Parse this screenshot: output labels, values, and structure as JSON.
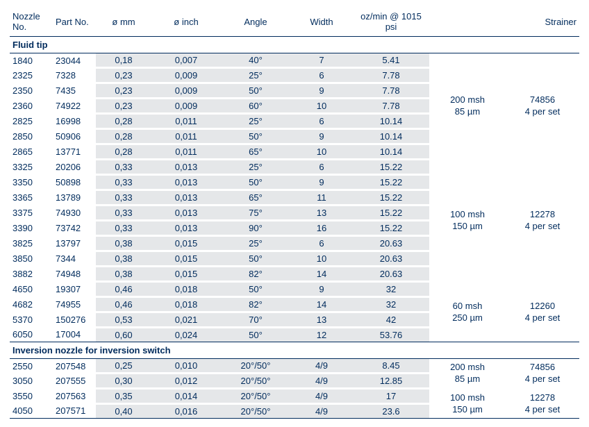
{
  "headers": {
    "nozzle": "Nozzle No.",
    "part": "Part No.",
    "mm": "ø mm",
    "inch": "ø inch",
    "angle": "Angle",
    "width": "Width",
    "oz": "oz/min @ 1015 psi",
    "strainer": "Strainer"
  },
  "section1": "Fluid tip",
  "section2": "Inversion nozzle for inversion switch",
  "fluid": [
    {
      "n": "1840",
      "p": "23044",
      "mm": "0,18",
      "in": "0,007",
      "a": "40°",
      "w": "7",
      "oz": "5.41"
    },
    {
      "n": "2325",
      "p": "7328",
      "mm": "0,23",
      "in": "0,009",
      "a": "25°",
      "w": "6",
      "oz": "7.78"
    },
    {
      "n": "2350",
      "p": "7435",
      "mm": "0,23",
      "in": "0,009",
      "a": "50°",
      "w": "9",
      "oz": "7.78"
    },
    {
      "n": "2360",
      "p": "74922",
      "mm": "0,23",
      "in": "0,009",
      "a": "60°",
      "w": "10",
      "oz": "7.78"
    },
    {
      "n": "2825",
      "p": "16998",
      "mm": "0,28",
      "in": "0,011",
      "a": "25°",
      "w": "6",
      "oz": "10.14"
    },
    {
      "n": "2850",
      "p": "50906",
      "mm": "0,28",
      "in": "0,011",
      "a": "50°",
      "w": "9",
      "oz": "10.14"
    },
    {
      "n": "2865",
      "p": "13771",
      "mm": "0,28",
      "in": "0,011",
      "a": "65°",
      "w": "10",
      "oz": "10.14"
    },
    {
      "n": "3325",
      "p": "20206",
      "mm": "0,33",
      "in": "0,013",
      "a": "25°",
      "w": "6",
      "oz": "15.22"
    },
    {
      "n": "3350",
      "p": "50898",
      "mm": "0,33",
      "in": "0,013",
      "a": "50°",
      "w": "9",
      "oz": "15.22"
    },
    {
      "n": "3365",
      "p": "13789",
      "mm": "0,33",
      "in": "0,013",
      "a": "65°",
      "w": "11",
      "oz": "15.22"
    },
    {
      "n": "3375",
      "p": "74930",
      "mm": "0,33",
      "in": "0,013",
      "a": "75°",
      "w": "13",
      "oz": "15.22"
    },
    {
      "n": "3390",
      "p": "73742",
      "mm": "0,33",
      "in": "0,013",
      "a": "90°",
      "w": "16",
      "oz": "15.22"
    },
    {
      "n": "3825",
      "p": "13797",
      "mm": "0,38",
      "in": "0,015",
      "a": "25°",
      "w": "6",
      "oz": "20.63"
    },
    {
      "n": "3850",
      "p": "7344",
      "mm": "0,38",
      "in": "0,015",
      "a": "50°",
      "w": "10",
      "oz": "20.63"
    },
    {
      "n": "3882",
      "p": "74948",
      "mm": "0,38",
      "in": "0,015",
      "a": "82°",
      "w": "14",
      "oz": "20.63"
    },
    {
      "n": "4650",
      "p": "19307",
      "mm": "0,46",
      "in": "0,018",
      "a": "50°",
      "w": "9",
      "oz": "32"
    },
    {
      "n": "4682",
      "p": "74955",
      "mm": "0,46",
      "in": "0,018",
      "a": "82°",
      "w": "14",
      "oz": "32"
    },
    {
      "n": "5370",
      "p": "150276",
      "mm": "0,53",
      "in": "0,021",
      "a": "70°",
      "w": "13",
      "oz": "42"
    },
    {
      "n": "6050",
      "p": "17004",
      "mm": "0,60",
      "in": "0,024",
      "a": "50°",
      "w": "12",
      "oz": "53.76"
    }
  ],
  "fluid_groups": [
    {
      "span": 7,
      "mesh": "200 msh",
      "um": "85 µm",
      "part": "74856",
      "per": "4 per set"
    },
    {
      "span": 8,
      "mesh": "100 msh",
      "um": "150 µm",
      "part": "12278",
      "per": "4 per set"
    },
    {
      "span": 4,
      "mesh": "60 msh",
      "um": "250 µm",
      "part": "12260",
      "per": "4 per set"
    }
  ],
  "inversion": [
    {
      "n": "2550",
      "p": "207548",
      "mm": "0,25",
      "in": "0,010",
      "a": "20°/50°",
      "w": "4/9",
      "oz": "8.45"
    },
    {
      "n": "3050",
      "p": "207555",
      "mm": "0,30",
      "in": "0,012",
      "a": "20°/50°",
      "w": "4/9",
      "oz": "12.85"
    },
    {
      "n": "3550",
      "p": "207563",
      "mm": "0,35",
      "in": "0,014",
      "a": "20°/50°",
      "w": "4/9",
      "oz": "17"
    },
    {
      "n": "4050",
      "p": "207571",
      "mm": "0,40",
      "in": "0,016",
      "a": "20°/50°",
      "w": "4/9",
      "oz": "23.6"
    }
  ],
  "inv_groups": [
    {
      "span": 2,
      "mesh": "200 msh",
      "um": "85 µm",
      "part": "74856",
      "per": "4 per set"
    },
    {
      "span": 2,
      "mesh": "100 msh",
      "um": "150 µm",
      "part": "12278",
      "per": "4 per set"
    }
  ]
}
